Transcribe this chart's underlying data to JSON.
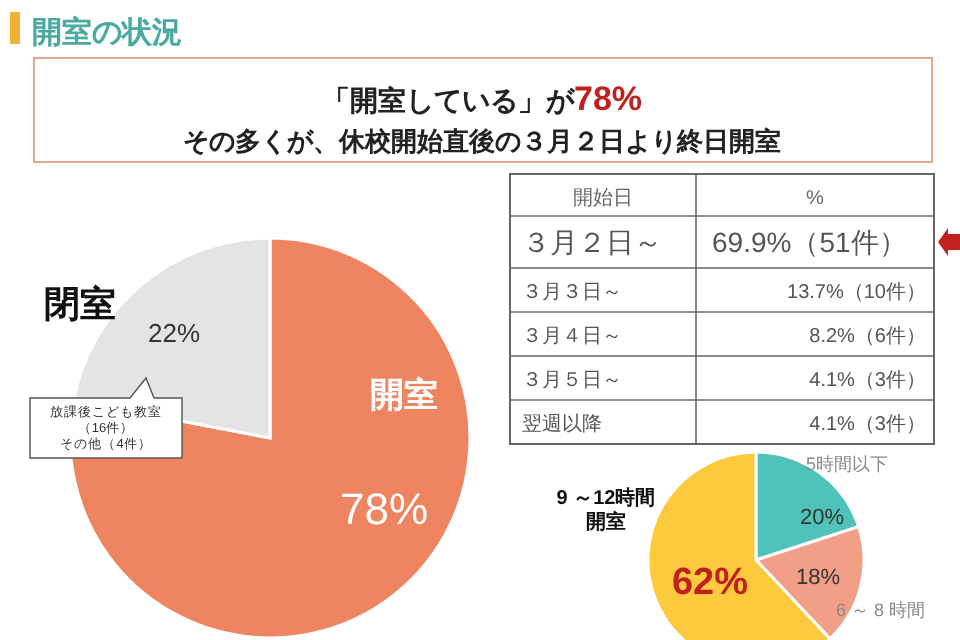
{
  "chart_data": [
    {
      "type": "other",
      "title": "開室の状況",
      "annotations": [
        "「開室している」が",
        "78%",
        "その多くが、休校開始直後の３月２日より終日開室"
      ]
    },
    {
      "type": "pie",
      "categories": [
        "開室",
        "閉室"
      ],
      "values": [
        78,
        22
      ],
      "colors": [
        "#ee8460",
        "#e4e4e4"
      ],
      "value_labels": [
        "78%",
        "22%"
      ],
      "annotations": [
        "放課後こども教室",
        "（16件）",
        "その他（4件）"
      ]
    },
    {
      "type": "other",
      "categories": [
        "３月２日～",
        "３月３日～",
        "３月４日～",
        "３月５日～",
        "翌週以降"
      ],
      "value_labels": [
        "69.9%（51件）",
        "13.7%（10件）",
        "8.2%（6件）",
        "4.1%（3件）",
        "4.1%（3件）"
      ],
      "annotations": [
        "開始日",
        "%"
      ]
    },
    {
      "type": "pie",
      "categories": [
        "5時間以下",
        "6 ～ 8 時間",
        "9 ～12時間開室"
      ],
      "values": [
        20,
        18,
        62
      ],
      "colors": [
        "#4fc3b9",
        "#f19f86",
        "#fdca3e"
      ],
      "value_labels": [
        "20%",
        "18%",
        "62%"
      ]
    }
  ]
}
